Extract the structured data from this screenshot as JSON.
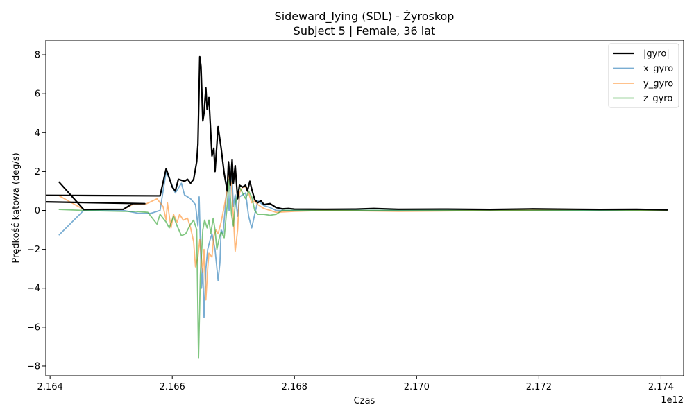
{
  "chart_data": {
    "type": "line",
    "title": "Sideward_lying (SDL) - Żyroskop",
    "subtitle": "Subject 5 | Female, 36 lat",
    "xlabel": "Czas",
    "ylabel": "Prędkość kątowa (deg/s)",
    "x_offset_label": "1e12",
    "xlim": [
      2.16393,
      2.17437
    ],
    "ylim": [
      -8.5,
      8.75
    ],
    "x_ticks": [
      2.164,
      2.166,
      2.168,
      2.17,
      2.172,
      2.174
    ],
    "x_tick_labels": [
      "2.164",
      "2.166",
      "2.168",
      "2.170",
      "2.172",
      "2.174"
    ],
    "y_ticks": [
      -8,
      -6,
      -4,
      -2,
      0,
      2,
      4,
      6,
      8
    ],
    "y_tick_labels": [
      "−8",
      "−6",
      "−4",
      "−2",
      "0",
      "2",
      "4",
      "6",
      "8"
    ],
    "legend_position": "top-right",
    "series": [
      {
        "name": "|gyro|",
        "color": "#000000",
        "width": 2.2,
        "opacity": 1,
        "points": [
          [
            2.16415,
            1.45
          ],
          [
            2.16455,
            0.05
          ],
          [
            2.1652,
            0.06
          ],
          [
            2.16535,
            0.35
          ],
          [
            2.16555,
            0.35
          ],
          [
            2.1557,
            0.9
          ],
          [
            2.1658,
            0.75
          ],
          [
            2.1659,
            2.15
          ],
          [
            2.166,
            1.2
          ],
          [
            2.16605,
            1.0
          ],
          [
            2.1661,
            1.6
          ],
          [
            2.1662,
            1.5
          ],
          [
            2.16625,
            1.6
          ],
          [
            2.1663,
            1.4
          ],
          [
            2.16635,
            1.6
          ],
          [
            2.1664,
            2.5
          ],
          [
            2.16642,
            3.4
          ],
          [
            2.16645,
            7.9
          ],
          [
            2.16647,
            7.4
          ],
          [
            2.1665,
            4.6
          ],
          [
            2.16652,
            5.0
          ],
          [
            2.16655,
            6.3
          ],
          [
            2.16657,
            5.2
          ],
          [
            2.1666,
            5.8
          ],
          [
            2.16663,
            4.0
          ],
          [
            2.16665,
            2.8
          ],
          [
            2.16668,
            3.2
          ],
          [
            2.1667,
            2.0
          ],
          [
            2.16675,
            4.3
          ],
          [
            2.1668,
            3.2
          ],
          [
            2.16685,
            1.9
          ],
          [
            2.1669,
            1.0
          ],
          [
            2.16692,
            2.5
          ],
          [
            2.16695,
            1.3
          ],
          [
            2.16698,
            2.6
          ],
          [
            2.167,
            1.4
          ],
          [
            2.16703,
            2.3
          ],
          [
            2.16707,
            0.6
          ],
          [
            2.1671,
            1.3
          ],
          [
            2.16715,
            1.2
          ],
          [
            2.1672,
            1.3
          ],
          [
            2.16723,
            1.0
          ],
          [
            2.16727,
            1.5
          ],
          [
            2.1673,
            1.1
          ],
          [
            2.16735,
            0.55
          ],
          [
            2.1674,
            0.4
          ],
          [
            2.16745,
            0.5
          ],
          [
            2.1675,
            0.3
          ],
          [
            2.1676,
            0.35
          ],
          [
            2.1677,
            0.15
          ],
          [
            2.1678,
            0.08
          ],
          [
            2.1679,
            0.1
          ],
          [
            2.168,
            0.07
          ],
          [
            2.1685,
            0.06
          ],
          [
            2.169,
            0.07
          ],
          [
            2.1693,
            0.1
          ],
          [
            2.1697,
            0.06
          ],
          [
            2.1705,
            0.07
          ],
          [
            2.1712,
            0.05
          ],
          [
            2.1719,
            0.08
          ],
          [
            2.1726,
            0.06
          ],
          [
            2.173,
            0.05
          ],
          [
            2.1736,
            0.06
          ],
          [
            2.1741,
            0.03
          ]
        ]
      },
      {
        "name": "x_gyro",
        "color": "#1f77b4",
        "width": 1.8,
        "opacity": 0.6,
        "points": [
          [
            2.16415,
            -1.25
          ],
          [
            2.16455,
            0.0
          ],
          [
            2.1652,
            0.0
          ],
          [
            2.16545,
            -0.15
          ],
          [
            2.16565,
            -0.15
          ],
          [
            2.1658,
            0.0
          ],
          [
            2.1659,
            2.0
          ],
          [
            2.16605,
            0.9
          ],
          [
            2.16615,
            1.4
          ],
          [
            2.1662,
            0.8
          ],
          [
            2.1663,
            0.6
          ],
          [
            2.16638,
            0.3
          ],
          [
            2.16642,
            -0.8
          ],
          [
            2.16644,
            0.7
          ],
          [
            2.16648,
            -4.0
          ],
          [
            2.1665,
            -3.0
          ],
          [
            2.16652,
            -5.5
          ],
          [
            2.16655,
            -3.0
          ],
          [
            2.16658,
            -2.0
          ],
          [
            2.16662,
            -1.5
          ],
          [
            2.16665,
            -1.2
          ],
          [
            2.1667,
            -2.0
          ],
          [
            2.16675,
            -3.6
          ],
          [
            2.16678,
            -2.7
          ],
          [
            2.1668,
            -1.0
          ],
          [
            2.16683,
            -1.2
          ],
          [
            2.16687,
            0.2
          ],
          [
            2.1669,
            1.5
          ],
          [
            2.16693,
            0.0
          ],
          [
            2.16697,
            2.3
          ],
          [
            2.167,
            0.2
          ],
          [
            2.16703,
            0.8
          ],
          [
            2.16707,
            -0.3
          ],
          [
            2.1671,
            0.7
          ],
          [
            2.16715,
            0.8
          ],
          [
            2.1672,
            0.9
          ],
          [
            2.16725,
            -0.3
          ],
          [
            2.1673,
            -0.9
          ],
          [
            2.16735,
            -0.2
          ],
          [
            2.1674,
            0.5
          ],
          [
            2.1675,
            0.25
          ],
          [
            2.1676,
            0.15
          ],
          [
            2.1677,
            0.0
          ],
          [
            2.1685,
            0.0
          ],
          [
            2.1741,
            0.0
          ]
        ]
      },
      {
        "name": "y_gyro",
        "color": "#ff7f0e",
        "width": 1.8,
        "opacity": 0.55,
        "points": [
          [
            2.16415,
            0.75
          ],
          [
            2.16455,
            0.05
          ],
          [
            2.1652,
            0.06
          ],
          [
            2.16535,
            0.3
          ],
          [
            2.16555,
            0.3
          ],
          [
            2.16575,
            0.6
          ],
          [
            2.16585,
            0.2
          ],
          [
            2.1659,
            -0.5
          ],
          [
            2.16592,
            0.4
          ],
          [
            2.16598,
            -0.9
          ],
          [
            2.16602,
            -0.2
          ],
          [
            2.16608,
            -0.6
          ],
          [
            2.16612,
            -0.2
          ],
          [
            2.16618,
            -0.5
          ],
          [
            2.16625,
            -0.4
          ],
          [
            2.1663,
            -0.9
          ],
          [
            2.16635,
            -1.6
          ],
          [
            2.16638,
            -2.9
          ],
          [
            2.16642,
            -2.4
          ],
          [
            2.16645,
            -1.5
          ],
          [
            2.1665,
            -3.2
          ],
          [
            2.16652,
            -2.0
          ],
          [
            2.16655,
            -4.6
          ],
          [
            2.16658,
            -3.0
          ],
          [
            2.1666,
            -2.2
          ],
          [
            2.16665,
            -2.4
          ],
          [
            2.16668,
            -1.3
          ],
          [
            2.16672,
            -1.0
          ],
          [
            2.16675,
            -1.2
          ],
          [
            2.1668,
            -0.6
          ],
          [
            2.16685,
            0.2
          ],
          [
            2.16688,
            0.7
          ],
          [
            2.1669,
            1.1
          ],
          [
            2.16693,
            2.0
          ],
          [
            2.16697,
            1.3
          ],
          [
            2.167,
            -0.3
          ],
          [
            2.16703,
            -2.1
          ],
          [
            2.16707,
            -1.0
          ],
          [
            2.1671,
            0.9
          ],
          [
            2.16715,
            1.2
          ],
          [
            2.1672,
            1.2
          ],
          [
            2.16725,
            0.9
          ],
          [
            2.1673,
            0.4
          ],
          [
            2.16735,
            0.5
          ],
          [
            2.1674,
            0.3
          ],
          [
            2.1675,
            0.1
          ],
          [
            2.1676,
            0.0
          ],
          [
            2.1677,
            -0.1
          ],
          [
            2.168,
            -0.05
          ],
          [
            2.1685,
            0.0
          ],
          [
            2.1697,
            -0.05
          ],
          [
            2.1729,
            0.05
          ],
          [
            2.1741,
            0.0
          ]
        ]
      },
      {
        "name": "z_gyro",
        "color": "#2ca02c",
        "width": 1.8,
        "opacity": 0.6,
        "points": [
          [
            2.16415,
            0.05
          ],
          [
            2.16455,
            0.0
          ],
          [
            2.1652,
            -0.05
          ],
          [
            2.1654,
            -0.05
          ],
          [
            2.1656,
            -0.1
          ],
          [
            2.16575,
            -0.7
          ],
          [
            2.1658,
            -0.2
          ],
          [
            2.1659,
            -0.6
          ],
          [
            2.16595,
            -0.9
          ],
          [
            2.16602,
            -0.3
          ],
          [
            2.16608,
            -0.8
          ],
          [
            2.16615,
            -1.3
          ],
          [
            2.16622,
            -1.2
          ],
          [
            2.1663,
            -0.7
          ],
          [
            2.16635,
            -0.5
          ],
          [
            2.1664,
            -1.0
          ],
          [
            2.16643,
            -7.6
          ],
          [
            2.16646,
            -3.3
          ],
          [
            2.1665,
            -1.0
          ],
          [
            2.16653,
            -0.5
          ],
          [
            2.16657,
            -0.9
          ],
          [
            2.1666,
            -0.5
          ],
          [
            2.16663,
            -1.2
          ],
          [
            2.16667,
            -0.4
          ],
          [
            2.1667,
            -1.0
          ],
          [
            2.16673,
            -2.0
          ],
          [
            2.16677,
            -1.4
          ],
          [
            2.1668,
            -1.1
          ],
          [
            2.16685,
            -1.4
          ],
          [
            2.1669,
            0.3
          ],
          [
            2.16693,
            1.6
          ],
          [
            2.16697,
            -0.2
          ],
          [
            2.167,
            -0.8
          ],
          [
            2.16703,
            0.3
          ],
          [
            2.16707,
            0.9
          ],
          [
            2.1671,
            1.2
          ],
          [
            2.16715,
            0.9
          ],
          [
            2.1672,
            0.6
          ],
          [
            2.16725,
            1.0
          ],
          [
            2.1673,
            0.7
          ],
          [
            2.16735,
            0.0
          ],
          [
            2.1674,
            -0.2
          ],
          [
            2.1675,
            -0.2
          ],
          [
            2.1676,
            -0.25
          ],
          [
            2.1677,
            -0.2
          ],
          [
            2.1678,
            0.0
          ],
          [
            2.1741,
            0.0
          ]
        ]
      }
    ]
  }
}
